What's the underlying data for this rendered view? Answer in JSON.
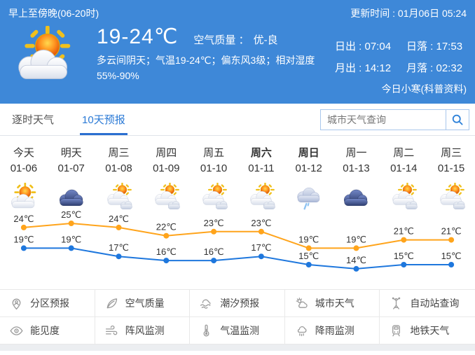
{
  "colors": {
    "header_bg": "#3e88d8",
    "tab_active": "#2b7ad6",
    "high_line": "#ffa41b",
    "low_line": "#1e77dd"
  },
  "header": {
    "period_label": "早上至傍晚(06-20时)",
    "update_time": "更新时间 : 01月06日 05:24",
    "temp_range": "19-24℃",
    "air_quality_label": "空气质量 ：",
    "air_quality_value": "优-良",
    "description": "多云间阴天；气温19-24℃；偏东风3级；相对湿度55%-90%",
    "sun_moon": [
      [
        "日出 : 07:04",
        "日落 : 17:53"
      ],
      [
        "月出 : 14:12",
        "月落 : 02:32"
      ]
    ],
    "solar_term_link": "今日小寒(科普资料)"
  },
  "tabs": [
    {
      "label": "逐时天气",
      "active": false
    },
    {
      "label": "10天预报",
      "active": true
    }
  ],
  "search": {
    "placeholder": "城市天气查询"
  },
  "forecast": {
    "days": [
      {
        "weekday": "今天",
        "date": "01-06",
        "icon": "sun-cloud",
        "bold": false
      },
      {
        "weekday": "明天",
        "date": "01-07",
        "icon": "overcast",
        "bold": false
      },
      {
        "weekday": "周三",
        "date": "01-08",
        "icon": "sun-clouds",
        "bold": false
      },
      {
        "weekday": "周四",
        "date": "01-09",
        "icon": "sun-clouds",
        "bold": false
      },
      {
        "weekday": "周五",
        "date": "01-10",
        "icon": "sun-clouds",
        "bold": false
      },
      {
        "weekday": "周六",
        "date": "01-11",
        "icon": "sun-clouds",
        "bold": true
      },
      {
        "weekday": "周日",
        "date": "01-12",
        "icon": "rain",
        "bold": true
      },
      {
        "weekday": "周一",
        "date": "01-13",
        "icon": "overcast",
        "bold": false
      },
      {
        "weekday": "周二",
        "date": "01-14",
        "icon": "sun-clouds",
        "bold": false
      },
      {
        "weekday": "周三",
        "date": "01-15",
        "icon": "sun-clouds",
        "bold": false
      }
    ]
  },
  "chart_data": {
    "type": "line",
    "categories": [
      "01-06",
      "01-07",
      "01-08",
      "01-09",
      "01-10",
      "01-11",
      "01-12",
      "01-13",
      "01-14",
      "01-15"
    ],
    "series": [
      {
        "name": "high",
        "values": [
          24,
          25,
          24,
          22,
          23,
          23,
          19,
          19,
          21,
          21
        ],
        "color": "#ffa41b",
        "unit": "℃"
      },
      {
        "name": "low",
        "values": [
          19,
          19,
          17,
          16,
          16,
          17,
          15,
          14,
          15,
          15
        ],
        "color": "#1e77dd",
        "unit": "℃"
      }
    ],
    "title": "",
    "xlabel": "",
    "ylabel": "",
    "ylim": [
      12,
      27
    ],
    "grid": false,
    "legend": "none",
    "point_labels": true
  },
  "menu": {
    "rows": [
      [
        {
          "label": "分区预报",
          "icon": "pin-person"
        },
        {
          "label": "空气质量",
          "icon": "leaf"
        },
        {
          "label": "潮汐预报",
          "icon": "tide"
        },
        {
          "label": "城市天气",
          "icon": "city-weather"
        },
        {
          "label": "自动站查询",
          "icon": "station"
        }
      ],
      [
        {
          "label": "能见度",
          "icon": "eye"
        },
        {
          "label": "阵风监测",
          "icon": "wind"
        },
        {
          "label": "气温监测",
          "icon": "thermometer"
        },
        {
          "label": "降雨监测",
          "icon": "rain-monitor"
        },
        {
          "label": "地铁天气",
          "icon": "train"
        }
      ]
    ]
  }
}
